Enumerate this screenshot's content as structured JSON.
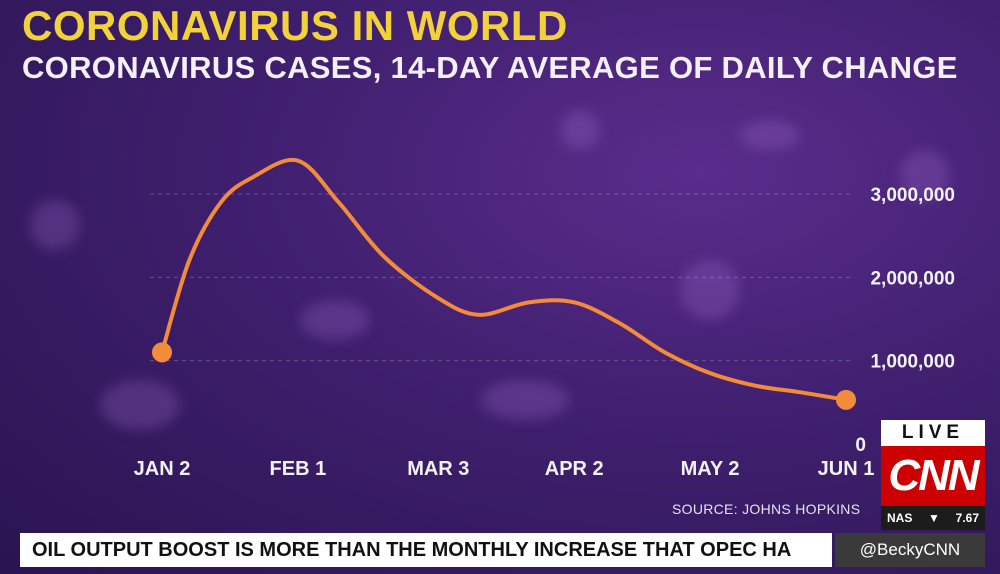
{
  "header": {
    "title": "CORONAVIRUS IN WORLD",
    "subtitle": "CORONAVIRUS CASES, 14-DAY AVERAGE OF DAILY CHANGE"
  },
  "chart_data": {
    "type": "line",
    "x": [
      "JAN 2",
      "JAN 8",
      "JAN 15",
      "JAN 22",
      "FEB 1",
      "FEB 10",
      "FEB 20",
      "MAR 3",
      "MAR 12",
      "MAR 23",
      "APR 2",
      "APR 12",
      "APR 22",
      "MAY 2",
      "MAY 12",
      "MAY 22",
      "JUN 1"
    ],
    "values": [
      1100000,
      2200000,
      2900000,
      3200000,
      3400000,
      2900000,
      2250000,
      1750000,
      1550000,
      1700000,
      1700000,
      1450000,
      1100000,
      850000,
      700000,
      620000,
      530000
    ],
    "x_tick_labels": [
      "JAN 2",
      "FEB 1",
      "MAR 3",
      "APR 2",
      "MAY 2",
      "JUN 1"
    ],
    "y_tick_labels": [
      "0",
      "1,000,000",
      "2,000,000",
      "3,000,000"
    ],
    "ylim": [
      0,
      3500000
    ],
    "grid": true,
    "line_color": "#f28c3a"
  },
  "footer": {
    "source": "SOURCE: JOHNS HOPKINS",
    "ticker": "OIL OUTPUT BOOST IS MORE THAN THE MONTHLY INCREASE THAT OPEC HA",
    "handle": "@BeckyCNN"
  },
  "bug": {
    "live": "LIVE",
    "network": "CNN",
    "market_name": "NAS",
    "market_arrow": "▼",
    "market_value": "7.67"
  }
}
